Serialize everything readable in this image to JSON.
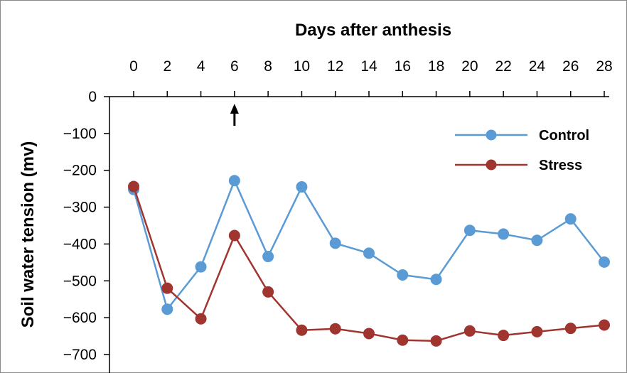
{
  "chart_data": {
    "type": "line",
    "xlabel": "Days after anthesis",
    "ylabel": "Soil water tension (mv)",
    "x_axis_position": "top",
    "xlim": [
      0,
      28
    ],
    "ylim": [
      -700,
      0
    ],
    "x_ticks": [
      "0",
      "2",
      "4",
      "6",
      "8",
      "10",
      "12",
      "14",
      "16",
      "18",
      "20",
      "22",
      "24",
      "26",
      "28"
    ],
    "y_ticks": [
      "0",
      "−100",
      "−200",
      "−300",
      "−400",
      "−500",
      "−600",
      "−700"
    ],
    "grid": false,
    "legend_position": "top-right",
    "annotation": {
      "type": "arrow",
      "x": 6,
      "direction": "up"
    },
    "series": [
      {
        "name": "Control",
        "color": "#5b9bd5",
        "marker": "circle",
        "x": [
          0,
          2,
          4,
          6,
          8,
          10,
          12,
          14,
          16,
          18,
          20,
          22,
          24,
          26,
          28
        ],
        "y": [
          -252,
          -577,
          -462,
          -228,
          -434,
          -245,
          -398,
          -425,
          -484,
          -496,
          -363,
          -373,
          -390,
          -332,
          -449
        ]
      },
      {
        "name": "Stress",
        "color": "#a03530",
        "marker": "circle",
        "x": [
          0,
          2,
          4,
          6,
          8,
          10,
          12,
          14,
          16,
          18,
          20,
          22,
          24,
          26,
          28
        ],
        "y": [
          -244,
          -520,
          -603,
          -377,
          -530,
          -634,
          -630,
          -643,
          -661,
          -663,
          -636,
          -648,
          -638,
          -629,
          -620
        ]
      }
    ]
  }
}
